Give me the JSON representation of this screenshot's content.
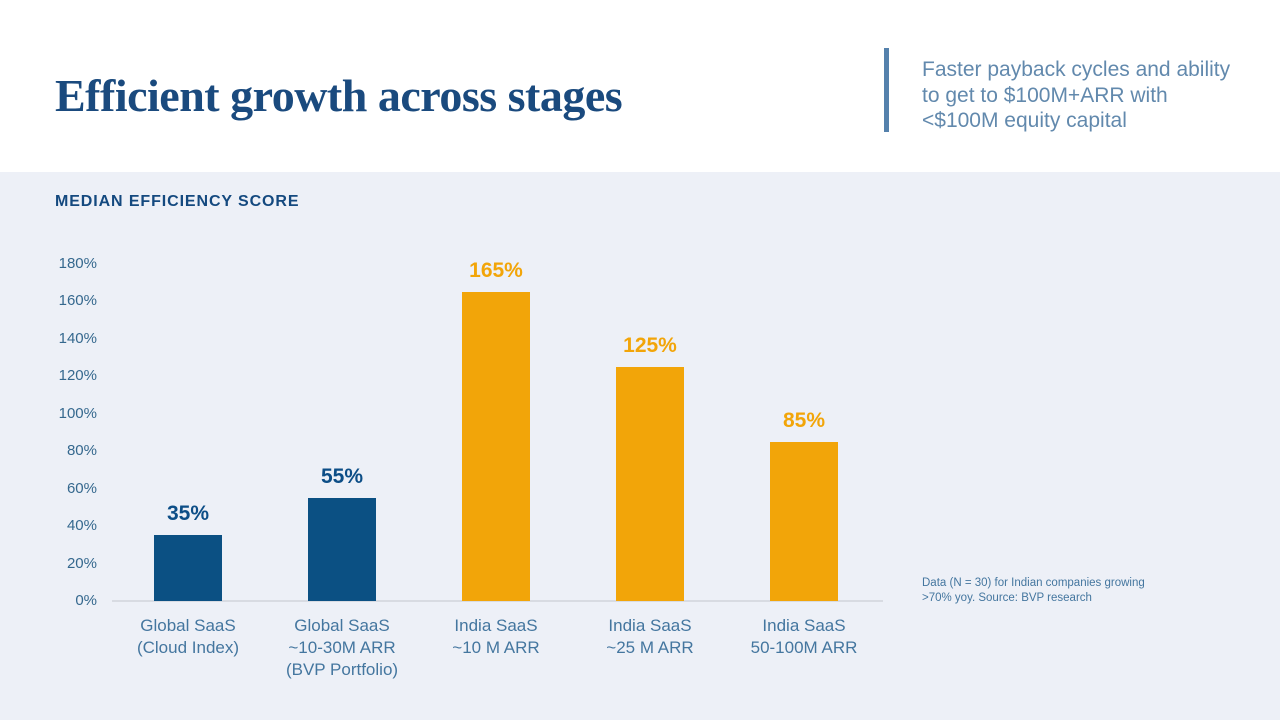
{
  "header": {
    "title": "Efficient growth across stages",
    "callout": {
      "lines": [
        "Faster payback cycles and ability",
        "to get to $100M+ARR with",
        "<$100M equity capital"
      ]
    }
  },
  "chart": {
    "heading": "MEDIAN EFFICIENCY SCORE",
    "footnote": {
      "lines": [
        "Data (N = 30) for Indian companies growing",
        ">70% yoy. Source: BVP research"
      ]
    }
  },
  "chart_data": {
    "type": "bar",
    "title": "MEDIAN EFFICIENCY SCORE",
    "categories": [
      "Global SaaS\n(Cloud Index)",
      "Global SaaS\n~10-30M ARR\n(BVP Portfolio)",
      "India SaaS\n~10 M ARR",
      "India SaaS\n~25 M ARR",
      "India SaaS\n50-100M ARR"
    ],
    "values": [
      35,
      55,
      165,
      125,
      85
    ],
    "value_labels": [
      "35%",
      "55%",
      "165%",
      "125%",
      "85%"
    ],
    "bar_colors": [
      "#0b5083",
      "#0b5083",
      "#f2a509",
      "#f2a509",
      "#f2a509"
    ],
    "label_colors": [
      "#0d4e87",
      "#0d4e87",
      "#f2a509",
      "#f2a509",
      "#f2a509"
    ],
    "xlabel": "",
    "ylabel": "",
    "ylim": [
      0,
      180
    ],
    "yticks": [
      0,
      20,
      40,
      60,
      80,
      100,
      120,
      140,
      160,
      180
    ],
    "ytick_suffix": "%",
    "grid": false,
    "legend": "none",
    "footnote": "Data (N = 30) for Indian companies growing >70% yoy. Source: BVP research"
  },
  "colors": {
    "title_navy": "#1a4a7e",
    "heading_navy": "#14497f",
    "callout_blue": "#6289ad",
    "divider_blue": "#5581ac",
    "axis_label_blue": "#35688e",
    "category_blue": "#44769f",
    "bar_dark_blue": "#0b5083",
    "bar_orange": "#f2a509",
    "chart_bg": "#edf0f7",
    "header_bg": "#ffffff",
    "baseline_gray": "#d8dbe2"
  }
}
